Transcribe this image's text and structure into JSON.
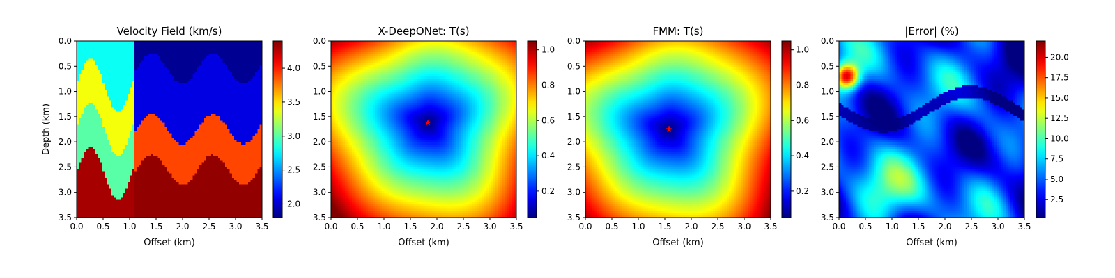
{
  "chart_data": [
    {
      "type": "heatmap",
      "title": "Velocity Field (km/s)",
      "xlabel": "Offset (km)",
      "ylabel": "Depth (km)",
      "xlim": [
        0,
        3.5
      ],
      "ylim": [
        3.5,
        0
      ],
      "xticks": [
        "0.0",
        "0.5",
        "1.0",
        "1.5",
        "2.0",
        "2.5",
        "3.0",
        "3.5"
      ],
      "yticks": [
        "0.0",
        "0.5",
        "1.0",
        "1.5",
        "2.0",
        "2.5",
        "3.0",
        "3.5"
      ],
      "colormap": "jet",
      "colorbar": {
        "min": 1.8,
        "max": 4.4,
        "ticks": [
          "2.0",
          "2.5",
          "3.0",
          "3.5",
          "4.0"
        ],
        "tick_values": [
          2.0,
          2.5,
          3.0,
          3.5,
          4.0
        ]
      },
      "field": {
        "kind": "layered",
        "layers": [
          {
            "velocity": 1.85,
            "top_depth": 0.0
          },
          {
            "velocity": 2.05,
            "top_depth": 0.55
          },
          {
            "velocity": 3.9,
            "top_depth": 1.75
          },
          {
            "velocity": 4.35,
            "top_depth": 2.55
          }
        ],
        "wave_amplitude_km": 0.3,
        "wave_period_km": 1.15,
        "left_block": {
          "x_max_km": 1.1,
          "velocities": [
            2.8,
            3.4,
            3.0,
            4.3
          ]
        }
      }
    },
    {
      "type": "heatmap",
      "title": "X-DeepONet: T(s)",
      "xlabel": "Offset (km)",
      "ylabel": "",
      "xlim": [
        0,
        3.5
      ],
      "ylim": [
        3.5,
        0
      ],
      "xticks": [
        "0.0",
        "0.5",
        "1.0",
        "1.5",
        "2.0",
        "2.5",
        "3.0",
        "3.5"
      ],
      "yticks": [
        "0.0",
        "0.5",
        "1.0",
        "1.5",
        "2.0",
        "2.5",
        "3.0",
        "3.5"
      ],
      "colormap": "jet",
      "colorbar": {
        "min": 0.05,
        "max": 1.05,
        "ticks": [
          "0.2",
          "0.4",
          "0.6",
          "0.8",
          "1.0"
        ],
        "tick_values": [
          0.2,
          0.4,
          0.6,
          0.8,
          1.0
        ]
      },
      "field": {
        "kind": "traveltime",
        "source": [
          1.83,
          1.62
        ],
        "max": 1.05
      },
      "source_marker": {
        "x": 1.83,
        "y": 1.62,
        "symbol": "star",
        "color": "#ff0000"
      }
    },
    {
      "type": "heatmap",
      "title": "FMM: T(s)",
      "xlabel": "Offset (km)",
      "ylabel": "",
      "xlim": [
        0,
        3.5
      ],
      "ylim": [
        3.5,
        0
      ],
      "xticks": [
        "0.0",
        "0.5",
        "1.0",
        "1.5",
        "2.0",
        "2.5",
        "3.0",
        "3.5"
      ],
      "yticks": [
        "0.0",
        "0.5",
        "1.0",
        "1.5",
        "2.0",
        "2.5",
        "3.0",
        "3.5"
      ],
      "colormap": "jet",
      "colorbar": {
        "min": 0.05,
        "max": 1.05,
        "ticks": [
          "0.2",
          "0.4",
          "0.6",
          "0.8",
          "1.0"
        ],
        "tick_values": [
          0.2,
          0.4,
          0.6,
          0.8,
          1.0
        ]
      },
      "field": {
        "kind": "traveltime",
        "source": [
          1.58,
          1.75
        ],
        "max": 1.05
      },
      "source_marker": {
        "x": 1.58,
        "y": 1.75,
        "symbol": "star",
        "color": "#ff0000"
      }
    },
    {
      "type": "heatmap",
      "title": "|Error| (%)",
      "xlabel": "Offset (km)",
      "ylabel": "",
      "xlim": [
        0,
        3.5
      ],
      "ylim": [
        3.5,
        0
      ],
      "xticks": [
        "0.0",
        "0.5",
        "1.0",
        "1.5",
        "2.0",
        "2.5",
        "3.0",
        "3.5"
      ],
      "yticks": [
        "0.0",
        "0.5",
        "1.0",
        "1.5",
        "2.0",
        "2.5",
        "3.0",
        "3.5"
      ],
      "colormap": "jet",
      "colorbar": {
        "min": 0.3,
        "max": 22,
        "ticks": [
          "2.5",
          "5.0",
          "7.5",
          "10.0",
          "12.5",
          "15.0",
          "17.5",
          "20.0"
        ],
        "tick_values": [
          2.5,
          5.0,
          7.5,
          10.0,
          12.5,
          15.0,
          17.5,
          20.0
        ]
      },
      "field": {
        "kind": "error",
        "hotspot": [
          0.15,
          0.7
        ],
        "hotspot_value": 21
      }
    }
  ]
}
